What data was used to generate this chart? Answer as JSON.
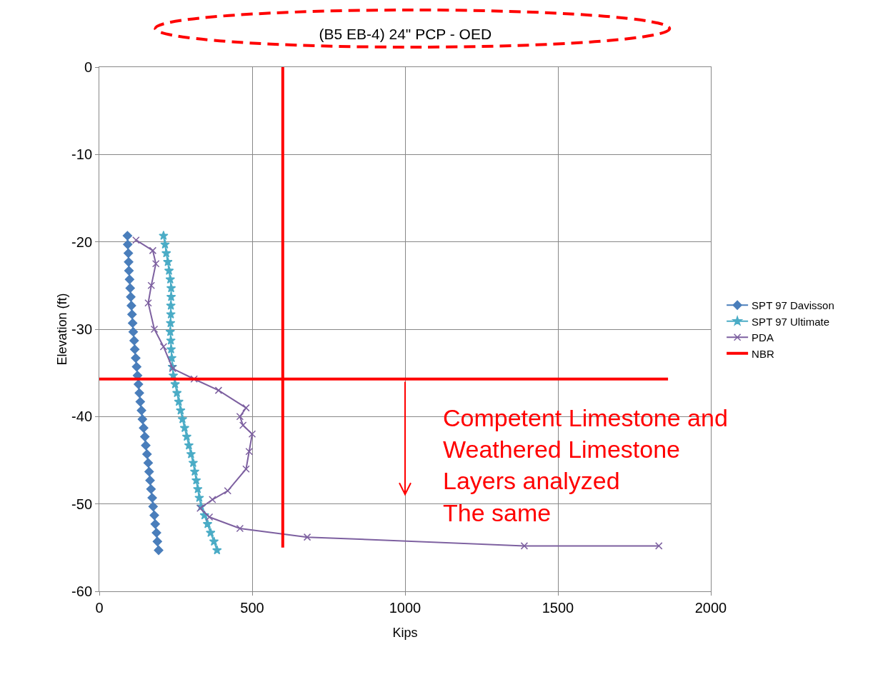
{
  "chart_data": {
    "type": "line",
    "title": "(B5 EB-4) 24\" PCP - OED",
    "xlabel": "Kips",
    "ylabel": "Elevation (ft)",
    "xlim": [
      0,
      2000
    ],
    "xticks": [
      0,
      500,
      1000,
      1500,
      2000
    ],
    "ylim": [
      -60,
      0
    ],
    "yticks": [
      0,
      -10,
      -20,
      -30,
      -40,
      -50,
      -60
    ],
    "grid": true,
    "legend": "right",
    "annotations": [
      "Competent Limestone and\nWeathered Limestone\nLayers analyzed\nThe same"
    ],
    "series": [
      {
        "name": "SPT 97 Davisson",
        "color": "#4a7ebb",
        "marker": "diamond",
        "x": [
          92,
          93,
          95,
          96,
          97,
          99,
          101,
          103,
          105,
          107,
          109,
          111,
          114,
          116,
          119,
          122,
          125,
          128,
          131,
          134,
          138,
          141,
          145,
          149,
          152,
          156,
          160,
          163,
          166,
          169,
          173,
          176,
          180,
          183,
          187,
          190,
          194
        ],
        "values": [
          -19.3,
          -20.3,
          -21.3,
          -22.3,
          -23.3,
          -24.3,
          -25.3,
          -26.3,
          -27.3,
          -28.3,
          -29.3,
          -30.3,
          -31.3,
          -32.3,
          -33.3,
          -34.3,
          -35.3,
          -36.3,
          -37.3,
          -38.3,
          -39.3,
          -40.3,
          -41.3,
          -42.3,
          -43.3,
          -44.3,
          -45.3,
          -46.3,
          -47.3,
          -48.3,
          -49.3,
          -50.3,
          -51.3,
          -52.3,
          -53.3,
          -54.3,
          -55.3
        ]
      },
      {
        "name": "SPT 97 Ultimate",
        "color": "#4bacc6",
        "marker": "star",
        "x": [
          210,
          215,
          219,
          224,
          228,
          232,
          235,
          235,
          234,
          234,
          233,
          232,
          234,
          235,
          237,
          239,
          242,
          248,
          254,
          260,
          266,
          272,
          279,
          286,
          293,
          300,
          307,
          312,
          317,
          322,
          327,
          333,
          344,
          354,
          364,
          375,
          385
        ],
        "values": [
          -19.3,
          -20.3,
          -21.3,
          -22.3,
          -23.3,
          -24.3,
          -25.3,
          -26.3,
          -27.3,
          -28.3,
          -29.3,
          -30.3,
          -31.3,
          -32.3,
          -33.3,
          -34.3,
          -35.3,
          -36.3,
          -37.3,
          -38.3,
          -39.3,
          -40.3,
          -41.3,
          -42.3,
          -43.3,
          -44.3,
          -45.3,
          -46.3,
          -47.3,
          -48.3,
          -49.3,
          -50.3,
          -51.3,
          -52.3,
          -53.3,
          -54.3,
          -55.3
        ]
      },
      {
        "name": "PDA",
        "color": "#7d60a0",
        "marker": "cross",
        "x": [
          120,
          175,
          185,
          170,
          160,
          180,
          210,
          240,
          310,
          390,
          480,
          460,
          470,
          500,
          490,
          480,
          420,
          370,
          330,
          360,
          460,
          680,
          1390,
          1830
        ],
        "values": [
          -19.8,
          -21,
          -22.5,
          -25,
          -27,
          -30,
          -32,
          -34.5,
          -35.7,
          -37,
          -39,
          -40,
          -41,
          -42,
          -44,
          -46,
          -48.5,
          -49.5,
          -50.5,
          -51.5,
          -52.8,
          -53.8,
          -54.8,
          -54.8
        ]
      },
      {
        "name": "NBR",
        "color": "#ff0000",
        "marker": "none",
        "x": [
          600,
          600,
          null,
          0,
          1860
        ],
        "values": [
          0,
          -55,
          null,
          -35.7,
          -35.7
        ]
      }
    ]
  }
}
